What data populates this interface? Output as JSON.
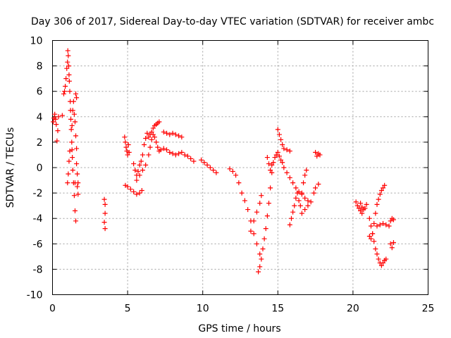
{
  "chart_data": {
    "type": "scatter",
    "title": "Day 306 of 2017, Sidereal Day-to-day VTEC variation (SDTVAR) for receiver ambc",
    "xlabel": "GPS time / hours",
    "ylabel": "SDTVAR / TECUs",
    "xlim": [
      0,
      25
    ],
    "ylim": [
      -10,
      10
    ],
    "xticks": [
      0,
      5,
      10,
      15,
      20,
      25
    ],
    "yticks": [
      -10,
      -8,
      -6,
      -4,
      -2,
      0,
      2,
      4,
      6,
      8,
      10
    ],
    "grid": true,
    "marker": "+",
    "color": "#ff0000",
    "series": [
      {
        "name": "SDTVAR",
        "points": [
          [
            0.05,
            3.6
          ],
          [
            0.1,
            3.9
          ],
          [
            0.15,
            4.2
          ],
          [
            0.2,
            3.8
          ],
          [
            0.25,
            3.4
          ],
          [
            0.3,
            2.1
          ],
          [
            0.35,
            2.9
          ],
          [
            0.4,
            4.0
          ],
          [
            0.65,
            4.1
          ],
          [
            0.75,
            5.8
          ],
          [
            0.8,
            6.0
          ],
          [
            0.85,
            6.4
          ],
          [
            0.9,
            7.0
          ],
          [
            0.95,
            7.8
          ],
          [
            1.0,
            8.3
          ],
          [
            1.02,
            9.2
          ],
          [
            1.05,
            8.8
          ],
          [
            1.08,
            8.0
          ],
          [
            1.1,
            7.3
          ],
          [
            1.12,
            6.8
          ],
          [
            1.15,
            6.0
          ],
          [
            1.18,
            5.2
          ],
          [
            1.2,
            4.5
          ],
          [
            1.22,
            3.8
          ],
          [
            1.25,
            3.0
          ],
          [
            1.28,
            2.0
          ],
          [
            1.3,
            1.4
          ],
          [
            1.32,
            0.8
          ],
          [
            1.35,
            -0.2
          ],
          [
            1.4,
            -1.2
          ],
          [
            1.45,
            -2.2
          ],
          [
            1.5,
            -3.4
          ],
          [
            1.55,
            -4.2
          ],
          [
            1.0,
            -1.2
          ],
          [
            1.05,
            -0.5
          ],
          [
            1.1,
            0.5
          ],
          [
            1.15,
            1.3
          ],
          [
            1.3,
            3.3
          ],
          [
            1.35,
            4.5
          ],
          [
            1.4,
            5.2
          ],
          [
            1.45,
            4.2
          ],
          [
            1.5,
            3.6
          ],
          [
            1.55,
            2.5
          ],
          [
            1.6,
            1.5
          ],
          [
            1.6,
            0.3
          ],
          [
            1.65,
            -0.5
          ],
          [
            1.65,
            -1.5
          ],
          [
            1.7,
            -2.1
          ],
          [
            1.7,
            -1.2
          ],
          [
            1.55,
            5.8
          ],
          [
            1.6,
            5.5
          ],
          [
            1.5,
            -1.2
          ],
          [
            3.45,
            -2.5
          ],
          [
            3.5,
            -2.9
          ],
          [
            3.45,
            -4.3
          ],
          [
            3.5,
            -3.6
          ],
          [
            3.5,
            -4.8
          ],
          [
            4.8,
            2.4
          ],
          [
            4.85,
            2.0
          ],
          [
            4.9,
            1.6
          ],
          [
            4.95,
            1.3
          ],
          [
            5.0,
            1.0
          ],
          [
            5.05,
            1.8
          ],
          [
            5.1,
            1.2
          ],
          [
            4.85,
            -1.4
          ],
          [
            5.0,
            -1.5
          ],
          [
            5.2,
            -1.7
          ],
          [
            5.4,
            -1.9
          ],
          [
            5.6,
            -2.1
          ],
          [
            5.8,
            -2.0
          ],
          [
            5.95,
            -1.8
          ],
          [
            5.4,
            0.3
          ],
          [
            5.5,
            -0.2
          ],
          [
            5.6,
            -0.6
          ],
          [
            5.7,
            -0.3
          ],
          [
            5.8,
            0.2
          ],
          [
            5.9,
            0.5
          ],
          [
            6.0,
            1.0
          ],
          [
            6.1,
            1.8
          ],
          [
            6.2,
            2.3
          ],
          [
            6.3,
            2.7
          ],
          [
            6.4,
            2.4
          ],
          [
            6.5,
            2.6
          ],
          [
            6.6,
            2.8
          ],
          [
            6.7,
            3.1
          ],
          [
            6.8,
            3.3
          ],
          [
            6.9,
            3.4
          ],
          [
            7.0,
            3.5
          ],
          [
            7.1,
            3.6
          ],
          [
            5.6,
            -1.0
          ],
          [
            5.8,
            -0.6
          ],
          [
            6.0,
            -0.2
          ],
          [
            6.2,
            0.2
          ],
          [
            6.4,
            1.0
          ],
          [
            6.5,
            1.6
          ],
          [
            6.6,
            2.2
          ],
          [
            6.7,
            2.6
          ],
          [
            6.8,
            2.4
          ],
          [
            6.9,
            2.0
          ],
          [
            7.0,
            1.6
          ],
          [
            7.1,
            1.3
          ],
          [
            7.2,
            1.4
          ],
          [
            7.4,
            1.5
          ],
          [
            7.6,
            1.4
          ],
          [
            7.8,
            1.2
          ],
          [
            8.0,
            1.1
          ],
          [
            8.2,
            1.0
          ],
          [
            8.4,
            1.1
          ],
          [
            8.6,
            1.2
          ],
          [
            8.8,
            1.0
          ],
          [
            9.0,
            0.9
          ],
          [
            9.2,
            0.7
          ],
          [
            9.4,
            0.5
          ],
          [
            7.4,
            2.8
          ],
          [
            7.6,
            2.7
          ],
          [
            7.8,
            2.6
          ],
          [
            8.0,
            2.7
          ],
          [
            8.2,
            2.6
          ],
          [
            8.4,
            2.5
          ],
          [
            8.6,
            2.4
          ],
          [
            9.9,
            0.6
          ],
          [
            10.1,
            0.4
          ],
          [
            10.3,
            0.2
          ],
          [
            10.5,
            0.0
          ],
          [
            10.7,
            -0.2
          ],
          [
            10.9,
            -0.4
          ],
          [
            11.8,
            -0.1
          ],
          [
            12.0,
            -0.3
          ],
          [
            12.2,
            -0.6
          ],
          [
            12.4,
            -1.2
          ],
          [
            12.6,
            -2.0
          ],
          [
            12.8,
            -2.6
          ],
          [
            13.0,
            -3.3
          ],
          [
            13.2,
            -4.2
          ],
          [
            13.4,
            -5.2
          ],
          [
            13.6,
            -6.0
          ],
          [
            13.8,
            -6.8
          ],
          [
            13.2,
            -5.0
          ],
          [
            13.4,
            -4.2
          ],
          [
            13.6,
            -3.5
          ],
          [
            13.8,
            -2.8
          ],
          [
            13.9,
            -2.2
          ],
          [
            13.7,
            -8.2
          ],
          [
            13.8,
            -7.8
          ],
          [
            13.9,
            -7.2
          ],
          [
            14.0,
            -6.4
          ],
          [
            14.1,
            -5.6
          ],
          [
            14.2,
            -4.8
          ],
          [
            14.3,
            -3.8
          ],
          [
            14.4,
            -2.8
          ],
          [
            14.5,
            -1.6
          ],
          [
            14.6,
            -0.4
          ],
          [
            14.7,
            0.4
          ],
          [
            14.8,
            0.8
          ],
          [
            14.9,
            1.0
          ],
          [
            15.0,
            1.2
          ],
          [
            15.1,
            0.9
          ],
          [
            15.2,
            0.6
          ],
          [
            14.3,
            0.8
          ],
          [
            14.4,
            0.3
          ],
          [
            14.5,
            -0.2
          ],
          [
            14.6,
            0.2
          ],
          [
            15.0,
            3.0
          ],
          [
            15.1,
            2.6
          ],
          [
            15.2,
            2.2
          ],
          [
            15.3,
            1.8
          ],
          [
            15.4,
            1.5
          ],
          [
            15.6,
            1.4
          ],
          [
            15.8,
            1.3
          ],
          [
            15.3,
            0.4
          ],
          [
            15.4,
            0.0
          ],
          [
            15.6,
            -0.4
          ],
          [
            15.8,
            -0.8
          ],
          [
            16.0,
            -1.2
          ],
          [
            16.2,
            -1.6
          ],
          [
            16.4,
            -1.9
          ],
          [
            16.6,
            -2.1
          ],
          [
            16.8,
            -2.4
          ],
          [
            17.0,
            -2.6
          ],
          [
            15.8,
            -4.5
          ],
          [
            15.9,
            -4.0
          ],
          [
            16.0,
            -3.5
          ],
          [
            16.1,
            -3.0
          ],
          [
            16.2,
            -2.4
          ],
          [
            16.3,
            -2.0
          ],
          [
            16.4,
            -2.6
          ],
          [
            16.5,
            -3.0
          ],
          [
            16.6,
            -2.0
          ],
          [
            16.7,
            -1.2
          ],
          [
            16.8,
            -0.6
          ],
          [
            16.9,
            -0.2
          ],
          [
            16.6,
            -3.6
          ],
          [
            16.8,
            -3.3
          ],
          [
            17.0,
            -3.0
          ],
          [
            17.2,
            -2.7
          ],
          [
            17.4,
            -2.0
          ],
          [
            17.5,
            -1.6
          ],
          [
            17.7,
            -1.3
          ],
          [
            17.5,
            1.2
          ],
          [
            17.6,
            0.9
          ],
          [
            17.7,
            1.1
          ],
          [
            17.8,
            1.0
          ],
          [
            20.2,
            -2.7
          ],
          [
            20.3,
            -3.0
          ],
          [
            20.4,
            -3.2
          ],
          [
            20.5,
            -3.4
          ],
          [
            20.6,
            -3.1
          ],
          [
            20.7,
            -3.3
          ],
          [
            20.8,
            -3.2
          ],
          [
            20.9,
            -2.9
          ],
          [
            20.5,
            -2.8
          ],
          [
            20.6,
            -3.6
          ],
          [
            21.1,
            -4.0
          ],
          [
            21.2,
            -4.6
          ],
          [
            21.3,
            -5.2
          ],
          [
            21.4,
            -5.8
          ],
          [
            21.5,
            -6.4
          ],
          [
            21.6,
            -6.8
          ],
          [
            21.7,
            -7.2
          ],
          [
            21.8,
            -7.5
          ],
          [
            21.9,
            -7.7
          ],
          [
            22.0,
            -7.5
          ],
          [
            22.1,
            -7.3
          ],
          [
            22.2,
            -7.2
          ],
          [
            21.1,
            -5.4
          ],
          [
            21.2,
            -5.6
          ],
          [
            21.3,
            -5.2
          ],
          [
            21.4,
            -4.4
          ],
          [
            21.5,
            -3.6
          ],
          [
            21.6,
            -2.9
          ],
          [
            21.7,
            -2.5
          ],
          [
            21.8,
            -2.1
          ],
          [
            21.9,
            -1.8
          ],
          [
            22.0,
            -1.6
          ],
          [
            22.1,
            -1.4
          ],
          [
            21.6,
            -4.6
          ],
          [
            21.8,
            -4.5
          ],
          [
            22.0,
            -4.4
          ],
          [
            22.2,
            -4.5
          ],
          [
            22.4,
            -4.6
          ],
          [
            22.5,
            -6.0
          ],
          [
            22.6,
            -6.3
          ],
          [
            22.7,
            -5.9
          ],
          [
            22.5,
            -4.2
          ],
          [
            22.6,
            -4.0
          ],
          [
            22.7,
            -4.1
          ]
        ]
      }
    ]
  }
}
